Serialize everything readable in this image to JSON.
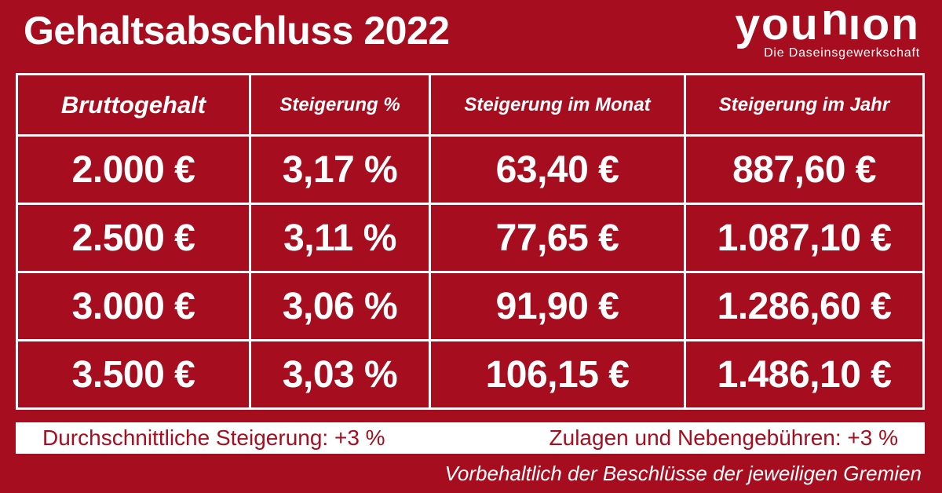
{
  "title": "Gehaltsabschluss 2022",
  "logo": {
    "word_part1": "you",
    "word_flipped": "u",
    "word_part2": "ıon",
    "tagline": "Die Daseinsgewerkschaft"
  },
  "chart_data": {
    "type": "table",
    "title": "Gehaltsabschluss 2022",
    "columns": [
      "Bruttogehalt",
      "Steigerung %",
      "Steigerung im Monat",
      "Steigerung im Jahr"
    ],
    "rows": [
      [
        "2.000 €",
        "3,17 %",
        "63,40 €",
        "887,60 €"
      ],
      [
        "2.500 €",
        "3,11 %",
        "77,65 €",
        "1.087,10 €"
      ],
      [
        "3.000 €",
        "3,06 %",
        "91,90 €",
        "1.286,60 €"
      ],
      [
        "3.500 €",
        "3,03 %",
        "106,15 €",
        "1.486,10 €"
      ]
    ],
    "notes": [
      "Durchschnittliche Steigerung: +3 %",
      "Zulagen und Nebengebühren: +3 %",
      "Vorbehaltlich der Beschlüsse der jeweiligen Gremien"
    ]
  },
  "summary_bar": {
    "left": "Durchschnittliche Steigerung: +3 %",
    "right": "Zulagen und Nebengebühren: +3 %"
  },
  "footnote": "Vorbehaltlich der Beschlüsse der jeweiligen Gremien",
  "colors": {
    "background": "#A60E1F",
    "text": "#FFFFFF",
    "bar_background": "#FFFFFF",
    "bar_text": "#A60E1F"
  }
}
